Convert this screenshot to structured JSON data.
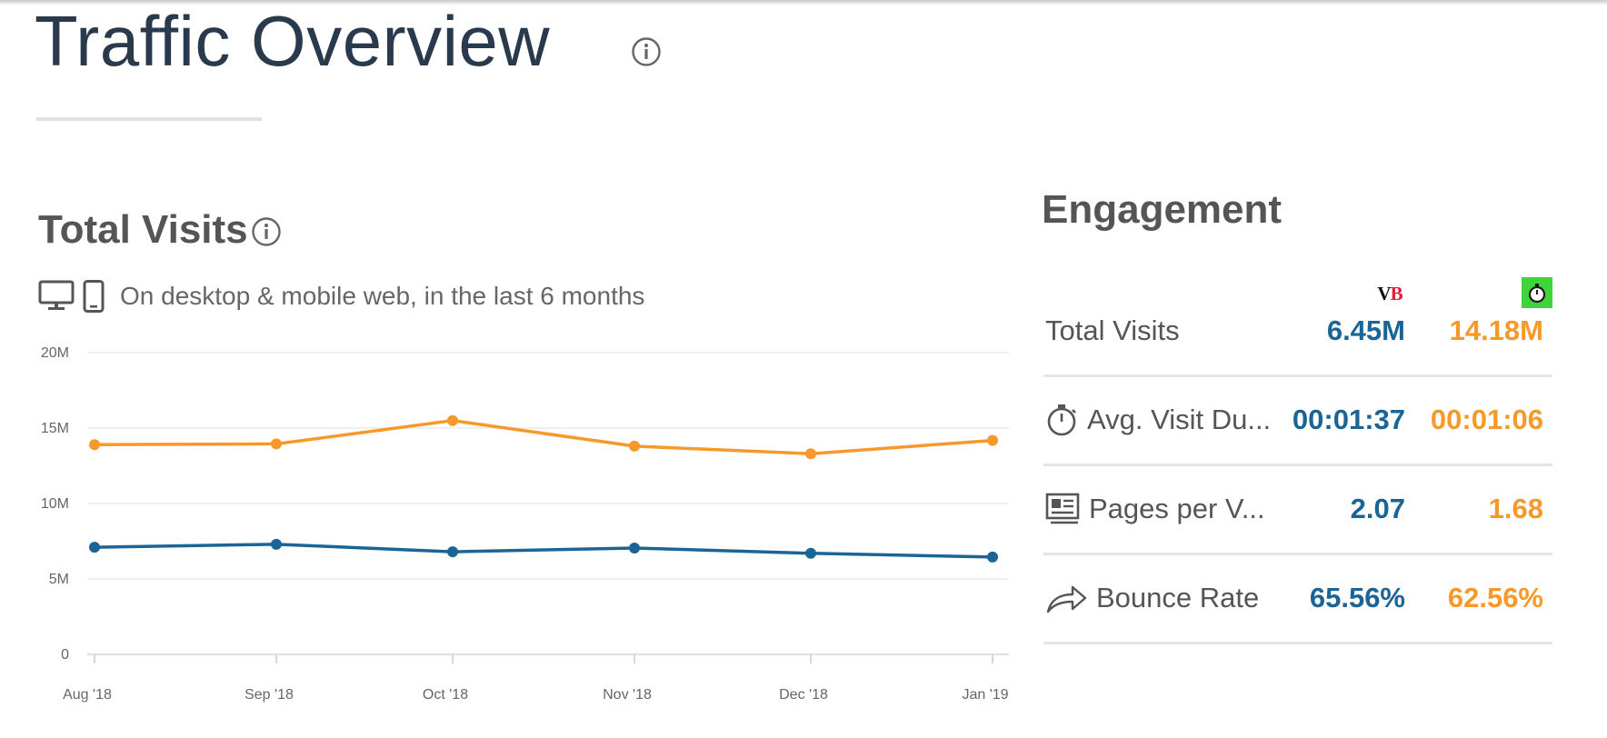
{
  "header": {
    "title": "Traffic Overview",
    "info_icon": "info-icon"
  },
  "visits": {
    "title": "Total Visits",
    "device_caption": "On desktop & mobile web, in the last 6 months",
    "icons": [
      "desktop-icon",
      "mobile-icon",
      "info-icon"
    ]
  },
  "chart_data": {
    "type": "line",
    "categories": [
      "Aug '18",
      "Sep '18",
      "Oct '18",
      "Nov '18",
      "Dec '18",
      "Jan '19"
    ],
    "y_ticks": [
      "0",
      "5M",
      "10M",
      "15M",
      "20M"
    ],
    "ylim": [
      0,
      20000000
    ],
    "grid": true,
    "legend": "none",
    "series": [
      {
        "values": [
          7100000,
          7300000,
          6800000,
          7050000,
          6700000,
          6450000
        ],
        "color": "#1a6496"
      },
      {
        "values": [
          13900000,
          13950000,
          15500000,
          13800000,
          13300000,
          14180000
        ],
        "color": "#f7982a"
      }
    ]
  },
  "engagement": {
    "title": "Engagement",
    "site_a_logo": {
      "text_v": "V",
      "text_b": "B"
    },
    "site_b_logo": "stopwatch-icon",
    "colors": {
      "site_a": "#1a6496",
      "site_b": "#f7982a"
    },
    "metrics": [
      {
        "label": "Total Visits",
        "icon": "",
        "site_a": "6.45M",
        "site_b": "14.18M"
      },
      {
        "label": "Avg. Visit Du...",
        "icon": "stopwatch-icon",
        "site_a": "00:01:37",
        "site_b": "00:01:06"
      },
      {
        "label": "Pages per V...",
        "icon": "pages-icon",
        "site_a": "2.07",
        "site_b": "1.68"
      },
      {
        "label": "Bounce Rate",
        "icon": "share-arrow-icon",
        "site_a": "65.56%",
        "site_b": "62.56%"
      }
    ]
  }
}
